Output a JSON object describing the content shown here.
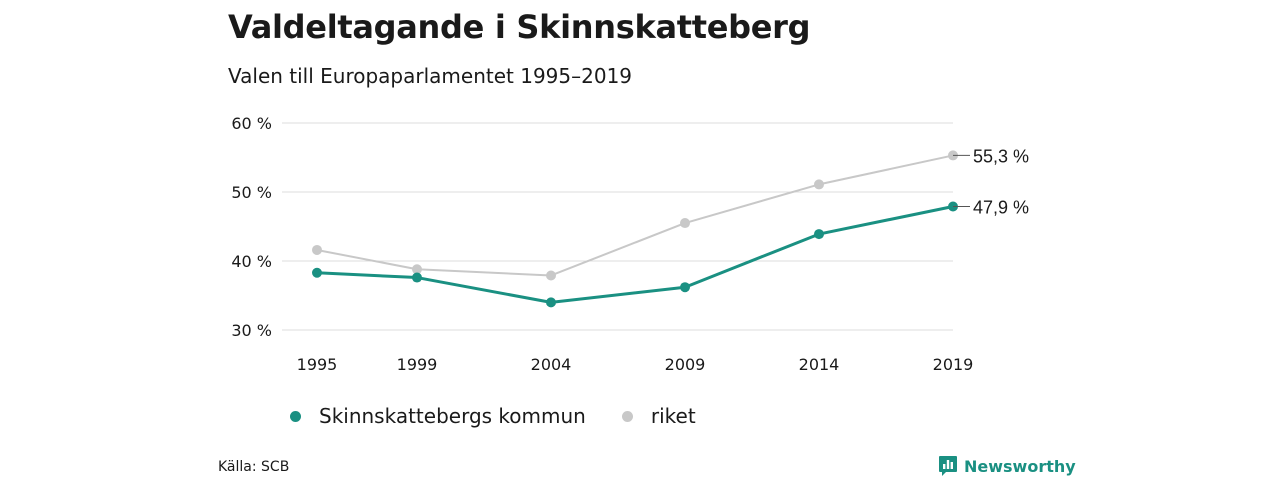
{
  "header": {
    "title": "Valdeltagande i Skinnskatteberg",
    "subtitle": "Valen till Europaparlamentet 1995–2019"
  },
  "chart_data": {
    "type": "line",
    "title": "Valdeltagande i Skinnskatteberg",
    "subtitle": "Valen till Europaparlamentet 1995–2019",
    "categories": [
      "1995",
      "1999",
      "2004",
      "2009",
      "2014",
      "2019"
    ],
    "ylim": [
      30,
      60
    ],
    "yticks": [
      30,
      40,
      50,
      60
    ],
    "ytick_labels": [
      "30 %",
      "40 %",
      "50 %",
      "60 %"
    ],
    "grid": true,
    "legend_position": "bottom-left",
    "series": [
      {
        "name": "Skinnskattebergs kommun",
        "color": "#1a9082",
        "values": [
          38.3,
          37.6,
          34.0,
          36.2,
          43.9,
          47.9
        ],
        "end_label": "47,9 %"
      },
      {
        "name": "riket",
        "color": "#c8c8c8",
        "values": [
          41.6,
          38.8,
          37.9,
          45.5,
          51.1,
          55.3
        ],
        "end_label": "55,3 %"
      }
    ]
  },
  "footer": {
    "source": "Källa: SCB",
    "brand": "Newsworthy",
    "brand_color": "#1a9082",
    "brand_icon": "bar-chart-speech-bubble-icon"
  }
}
